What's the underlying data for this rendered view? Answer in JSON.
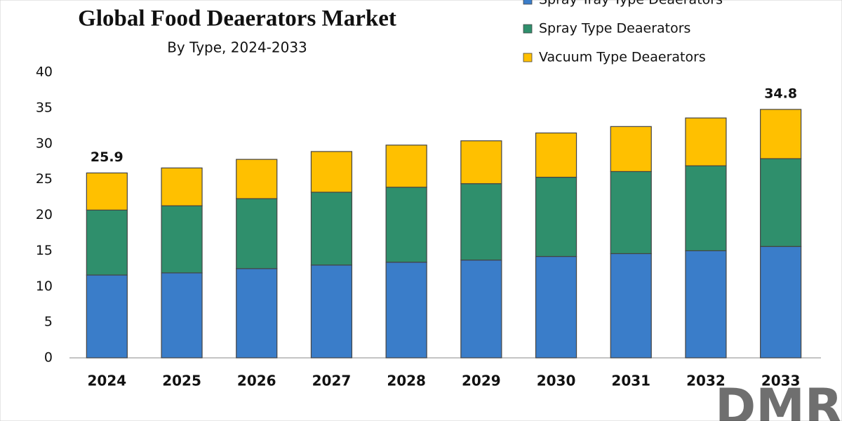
{
  "chart_data": {
    "type": "stacked_bar",
    "title": "Global Food Deaerators Market",
    "subtitle": "By Type, 2024-2033",
    "categories": [
      "2024",
      "2025",
      "2026",
      "2027",
      "2028",
      "2029",
      "2030",
      "2031",
      "2032",
      "2033"
    ],
    "series": [
      {
        "name": "Spray Tray Type Deaerators",
        "color": "#3a7dc9",
        "values": [
          11.6,
          11.9,
          12.5,
          13.0,
          13.4,
          13.7,
          14.2,
          14.6,
          15.0,
          15.6
        ]
      },
      {
        "name": "Spray Type Deaerators",
        "color": "#2f8f6c",
        "values": [
          9.1,
          9.4,
          9.8,
          10.2,
          10.5,
          10.7,
          11.1,
          11.5,
          11.9,
          12.3
        ]
      },
      {
        "name": "Vacuum Type Deaerators",
        "color": "#ffc000",
        "values": [
          5.2,
          5.3,
          5.5,
          5.7,
          5.9,
          6.0,
          6.2,
          6.3,
          6.7,
          6.9
        ]
      }
    ],
    "total_labels": [
      25.9,
      null,
      null,
      null,
      null,
      null,
      null,
      null,
      null,
      34.8
    ],
    "ylim": [
      0,
      40
    ],
    "yticks": [
      0,
      5,
      10,
      15,
      20,
      25,
      30,
      35,
      40
    ],
    "legend": "top-right",
    "logo": "DMR"
  }
}
